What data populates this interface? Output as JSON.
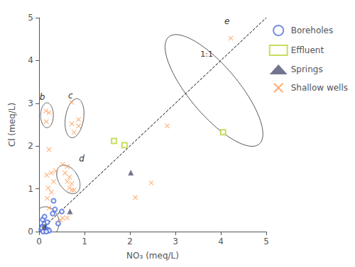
{
  "chart_data": {
    "type": "scatter",
    "title": "",
    "xlabel": "NO₃ (meq/L)",
    "ylabel": "Cl (meq/L)",
    "xlim": [
      0,
      5
    ],
    "ylim": [
      0,
      5
    ],
    "xticks": [
      0,
      1,
      2,
      3,
      4,
      5
    ],
    "yticks": [
      0,
      1,
      2,
      3,
      4,
      5
    ],
    "grid": false,
    "legend": "right",
    "series": [
      {
        "name": "Boreholes",
        "marker": "circle_open",
        "values": [
          [
            0.05,
            0.05
          ],
          [
            0.07,
            0.12
          ],
          [
            0.1,
            0.02
          ],
          [
            0.12,
            0.18
          ],
          [
            0.15,
            0.06
          ],
          [
            0.18,
            0.22
          ],
          [
            0.2,
            0.04
          ],
          [
            0.22,
            0.02
          ],
          [
            0.08,
            0.28
          ],
          [
            0.12,
            0.35
          ],
          [
            0.3,
            0.42
          ],
          [
            0.35,
            0.52
          ],
          [
            0.5,
            0.47
          ],
          [
            0.32,
            0.72
          ],
          [
            0.42,
            0.19
          ],
          [
            0.06,
            0.08
          ],
          [
            0.09,
            0.0
          ],
          [
            0.16,
            0.0
          ]
        ]
      },
      {
        "name": "Effluent",
        "marker": "square_open",
        "values": [
          [
            1.65,
            2.12
          ],
          [
            1.88,
            2.02
          ],
          [
            4.05,
            2.32
          ]
        ]
      },
      {
        "name": "Springs",
        "marker": "triangle",
        "values": [
          [
            0.68,
            0.47
          ],
          [
            2.02,
            1.38
          ]
        ]
      },
      {
        "name": "Shallow wells",
        "marker": "x",
        "values": [
          [
            0.15,
            2.82
          ],
          [
            0.22,
            2.78
          ],
          [
            0.16,
            2.57
          ],
          [
            0.72,
            3.02
          ],
          [
            0.87,
            2.62
          ],
          [
            0.72,
            2.52
          ],
          [
            0.87,
            2.47
          ],
          [
            0.77,
            2.32
          ],
          [
            0.52,
            1.57
          ],
          [
            0.62,
            1.52
          ],
          [
            0.57,
            1.37
          ],
          [
            0.67,
            1.27
          ],
          [
            0.62,
            1.17
          ],
          [
            0.72,
            1.12
          ],
          [
            0.67,
            1.02
          ],
          [
            0.72,
            0.97
          ],
          [
            0.77,
            0.97
          ],
          [
            0.52,
            0.32
          ],
          [
            0.62,
            0.32
          ],
          [
            0.47,
            0.27
          ],
          [
            0.22,
            1.92
          ],
          [
            0.27,
            1.37
          ],
          [
            0.32,
            1.17
          ],
          [
            0.37,
            1.42
          ],
          [
            0.2,
            1.02
          ],
          [
            0.17,
            1.32
          ],
          [
            0.27,
            0.92
          ],
          [
            0.18,
            0.78
          ],
          [
            0.22,
            0.55
          ],
          [
            2.82,
            2.47
          ],
          [
            2.12,
            0.8
          ],
          [
            2.47,
            1.14
          ],
          [
            4.22,
            4.52
          ]
        ]
      }
    ],
    "ellipses": {
      "color": "#555555",
      "items": [
        {
          "label": "a",
          "label_at": [
            0.06,
            0.02
          ],
          "cx": 0.15,
          "cy": 0.22,
          "w": 0.58,
          "h": 0.72,
          "angle": 5
        },
        {
          "label": "b",
          "label_at": [
            0.01,
            3.05
          ],
          "cx": 0.175,
          "cy": 2.72,
          "w": 0.28,
          "h": 0.58,
          "angle": 0
        },
        {
          "label": "c",
          "label_at": [
            0.64,
            3.08
          ],
          "cx": 0.78,
          "cy": 2.65,
          "w": 0.4,
          "h": 0.92,
          "angle": -8
        },
        {
          "label": "d",
          "label_at": [
            0.88,
            1.6
          ],
          "cx": 0.645,
          "cy": 1.22,
          "w": 0.44,
          "h": 0.72,
          "angle": 28
        },
        {
          "label": "e",
          "label_at": [
            4.08,
            4.82
          ],
          "cx": 3.85,
          "cy": 3.3,
          "w": 1.1,
          "h": 3.2,
          "angle": 38
        }
      ]
    },
    "reference_line": {
      "label": "1:1",
      "label_at": [
        3.55,
        4.05
      ],
      "x": [
        0,
        5
      ],
      "y": [
        0,
        5
      ],
      "line_style": "dashed",
      "color": "#000000"
    }
  }
}
